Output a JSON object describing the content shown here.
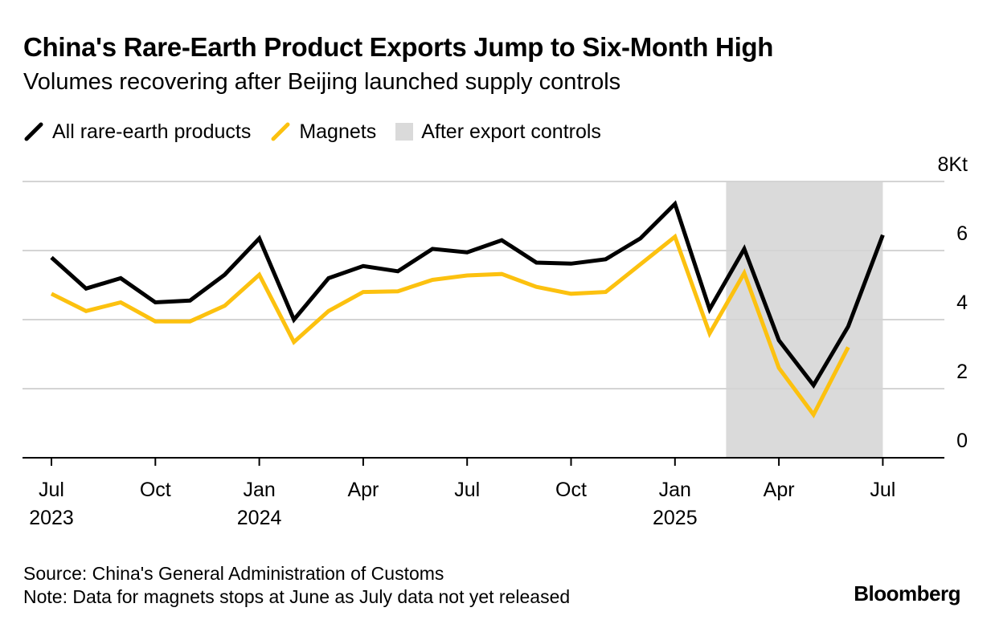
{
  "title": "China's Rare-Earth Product Exports Jump to Six-Month High",
  "subtitle": "Volumes recovering after Beijing launched supply controls",
  "legend": {
    "all": "All rare-earth products",
    "magnets": "Magnets",
    "shade": "After export controls"
  },
  "source": "Source: China's General Administration of Customs",
  "note": "Note: Data for magnets stops at June as July data not yet released",
  "logo": "Bloomberg",
  "colors": {
    "all": "#000000",
    "magnets": "#fcc10f",
    "shade": "#dadada",
    "grid": "#d4d4d4"
  },
  "chart_data": {
    "type": "line",
    "x": [
      "2023-07",
      "2023-08",
      "2023-09",
      "2023-10",
      "2023-11",
      "2023-12",
      "2024-01",
      "2024-02",
      "2024-03",
      "2024-04",
      "2024-05",
      "2024-06",
      "2024-07",
      "2024-08",
      "2024-09",
      "2024-10",
      "2024-11",
      "2024-12",
      "2025-01",
      "2025-02",
      "2025-03",
      "2025-04",
      "2025-05",
      "2025-06",
      "2025-07"
    ],
    "series": [
      {
        "name": "All rare-earth products",
        "values": [
          5.8,
          4.9,
          5.2,
          4.5,
          4.55,
          5.3,
          6.35,
          4.0,
          5.2,
          5.55,
          5.4,
          6.05,
          5.95,
          6.3,
          5.65,
          5.62,
          5.75,
          6.35,
          7.35,
          4.3,
          6.05,
          3.4,
          2.1,
          3.8,
          6.45
        ]
      },
      {
        "name": "Magnets",
        "values": [
          4.75,
          4.25,
          4.5,
          3.95,
          3.95,
          4.4,
          5.3,
          3.35,
          4.25,
          4.8,
          4.82,
          5.15,
          5.28,
          5.32,
          4.95,
          4.75,
          4.8,
          5.6,
          6.4,
          3.6,
          5.35,
          2.6,
          1.25,
          3.2,
          null
        ]
      }
    ],
    "shaded_region": {
      "label": "After export controls",
      "from": "2025-03",
      "to": "2025-07"
    },
    "y_ticks": [
      {
        "value": 0,
        "label": "0"
      },
      {
        "value": 2,
        "label": "2"
      },
      {
        "value": 4,
        "label": "4"
      },
      {
        "value": 6,
        "label": "6"
      },
      {
        "value": 8,
        "label": "8Kt"
      }
    ],
    "x_ticks": [
      {
        "x": "2023-07",
        "month": "Jul",
        "year": "2023"
      },
      {
        "x": "2023-10",
        "month": "Oct",
        "year": ""
      },
      {
        "x": "2024-01",
        "month": "Jan",
        "year": "2024"
      },
      {
        "x": "2024-04",
        "month": "Apr",
        "year": ""
      },
      {
        "x": "2024-07",
        "month": "Jul",
        "year": ""
      },
      {
        "x": "2024-10",
        "month": "Oct",
        "year": ""
      },
      {
        "x": "2025-01",
        "month": "Jan",
        "year": "2025"
      },
      {
        "x": "2025-04",
        "month": "Apr",
        "year": ""
      },
      {
        "x": "2025-07",
        "month": "Jul",
        "year": ""
      }
    ],
    "ylim": [
      0,
      8
    ],
    "grid": true,
    "legend_position": "top-left"
  }
}
